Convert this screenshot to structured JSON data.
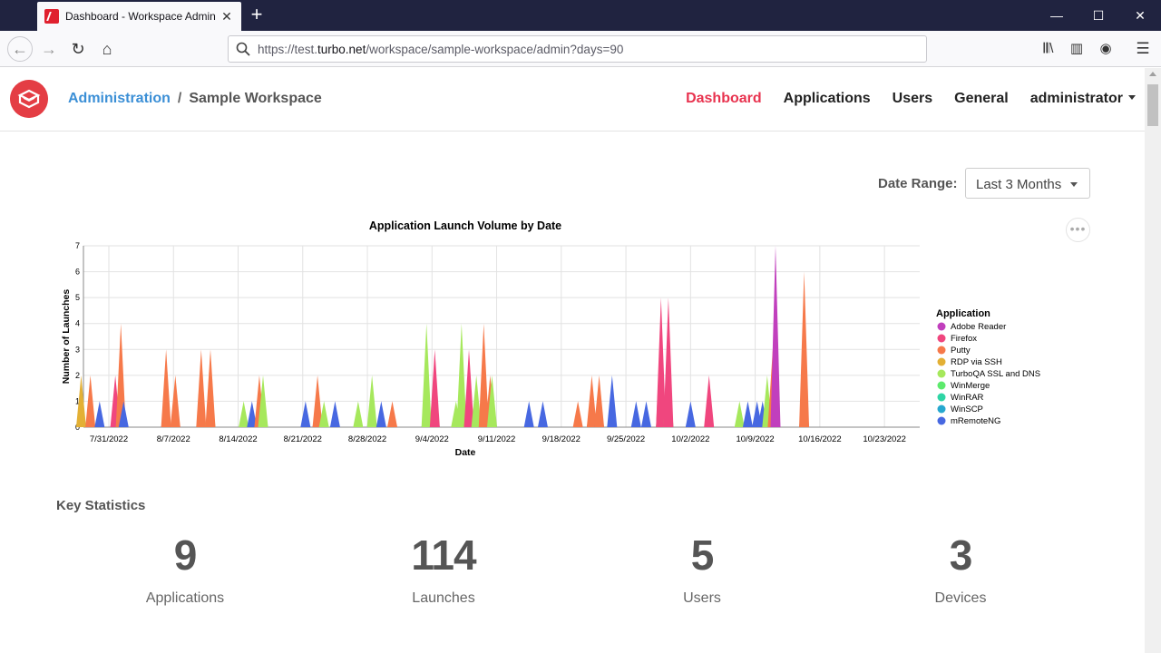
{
  "browser": {
    "tab_title": "Dashboard - Workspace Admin",
    "url_prefix": "https://test.",
    "url_host": "turbo.net",
    "url_path": "/workspace/sample-workspace/admin?days=90"
  },
  "header": {
    "breadcrumb_root": "Administration",
    "breadcrumb_sep": "/",
    "breadcrumb_current": "Sample Workspace",
    "nav": [
      "Dashboard",
      "Applications",
      "Users",
      "General",
      "administrator"
    ]
  },
  "filters": {
    "date_range_label": "Date Range:",
    "date_range_value": "Last 3 Months"
  },
  "chart_data": {
    "type": "area",
    "title": "Application Launch Volume by Date",
    "xlabel": "Date",
    "ylabel": "Number of Launches",
    "ylim": [
      0,
      7
    ],
    "yticks": [
      "0",
      "1",
      "2",
      "3",
      "4",
      "5",
      "6",
      "7"
    ],
    "xticks": [
      "7/31/2022",
      "8/7/2022",
      "8/14/2022",
      "8/21/2022",
      "8/28/2022",
      "9/4/2022",
      "9/11/2022",
      "9/18/2022",
      "9/25/2022",
      "10/2/2022",
      "10/9/2022",
      "10/16/2022",
      "10/23/2022"
    ],
    "grid": true,
    "legend_title": "Application",
    "legend_position": "right",
    "series": [
      {
        "name": "Adobe Reader",
        "color": "#c13fbd"
      },
      {
        "name": "Firefox",
        "color": "#f0467e"
      },
      {
        "name": "Putty",
        "color": "#f6794a"
      },
      {
        "name": "RDP via SSH",
        "color": "#e3b035"
      },
      {
        "name": "TurboQA SSL and DNS",
        "color": "#a6e85c"
      },
      {
        "name": "WinMerge",
        "color": "#5dea6d"
      },
      {
        "name": "WinRAR",
        "color": "#2fd5a5"
      },
      {
        "name": "WinSCP",
        "color": "#26a8cf"
      },
      {
        "name": "mRemoteNG",
        "color": "#4768e1"
      }
    ],
    "spikes": [
      {
        "day": -3,
        "stack": [
          1,
          0,
          0,
          1,
          0,
          0,
          0,
          0,
          0
        ]
      },
      {
        "day": -2,
        "stack": [
          0,
          0,
          1,
          1,
          0,
          0,
          0,
          0,
          0
        ]
      },
      {
        "day": -1,
        "stack": [
          1,
          0,
          0,
          0,
          0,
          0,
          0,
          0,
          0
        ]
      },
      {
        "day": 0.7,
        "stack": [
          1,
          1,
          0,
          0,
          0,
          0,
          0,
          0,
          0
        ]
      },
      {
        "day": 1.3,
        "stack": [
          2,
          0,
          1,
          1,
          0,
          0,
          0,
          0,
          0
        ]
      },
      {
        "day": 1.6,
        "stack": [
          1,
          0,
          0,
          0,
          0,
          0,
          0,
          0,
          0
        ]
      },
      {
        "day": 6.2,
        "stack": [
          1,
          0,
          2,
          0,
          0,
          0,
          0,
          0,
          0
        ]
      },
      {
        "day": 7.2,
        "stack": [
          1,
          0,
          1,
          0,
          0,
          0,
          0,
          0,
          0
        ]
      },
      {
        "day": 10,
        "stack": [
          1,
          0,
          2,
          0,
          0,
          0,
          0,
          0,
          0
        ]
      },
      {
        "day": 11,
        "stack": [
          1,
          0,
          1,
          0,
          1,
          0,
          0,
          0,
          0
        ]
      },
      {
        "day": 14.6,
        "stack": [
          0,
          0,
          0,
          0,
          1,
          0,
          0,
          0,
          0
        ]
      },
      {
        "day": 15.5,
        "stack": [
          1,
          0,
          0,
          0,
          0,
          0,
          0,
          0,
          0
        ]
      },
      {
        "day": 16.3,
        "stack": [
          1,
          0,
          1,
          0,
          0,
          0,
          0,
          0,
          0
        ]
      },
      {
        "day": 16.7,
        "stack": [
          1,
          0,
          0,
          0,
          1,
          0,
          0,
          0,
          0
        ]
      },
      {
        "day": 21.3,
        "stack": [
          1,
          0,
          0,
          0,
          0,
          0,
          0,
          0,
          0
        ]
      },
      {
        "day": 22.6,
        "stack": [
          1,
          0,
          1,
          0,
          0,
          0,
          0,
          0,
          0
        ]
      },
      {
        "day": 23.3,
        "stack": [
          0,
          0,
          0,
          0,
          1,
          0,
          0,
          0,
          0
        ]
      },
      {
        "day": 24.5,
        "stack": [
          1,
          0,
          0,
          0,
          0,
          0,
          0,
          0,
          0
        ]
      },
      {
        "day": 27,
        "stack": [
          0,
          0,
          0,
          0,
          1,
          0,
          0,
          0,
          0
        ]
      },
      {
        "day": 28.5,
        "stack": [
          1,
          0,
          0,
          0,
          1,
          0,
          0,
          0,
          0
        ]
      },
      {
        "day": 29.5,
        "stack": [
          1,
          0,
          0,
          0,
          0,
          0,
          0,
          0,
          0
        ]
      },
      {
        "day": 30.7,
        "stack": [
          0,
          0,
          1,
          0,
          0,
          0,
          0,
          0,
          0
        ]
      },
      {
        "day": 34.4,
        "stack": [
          1,
          0,
          0,
          0,
          3,
          0,
          0,
          0,
          0
        ]
      },
      {
        "day": 35.3,
        "stack": [
          1,
          2,
          0,
          0,
          0,
          0,
          0,
          0,
          0
        ]
      },
      {
        "day": 37.6,
        "stack": [
          0,
          0,
          0,
          0,
          1,
          0,
          0,
          0,
          0
        ]
      },
      {
        "day": 38.2,
        "stack": [
          1,
          0,
          0,
          0,
          3,
          0,
          0,
          0,
          0
        ]
      },
      {
        "day": 39,
        "stack": [
          1,
          1,
          1,
          0,
          0,
          0,
          0,
          0,
          0
        ]
      },
      {
        "day": 39.8,
        "stack": [
          1,
          0,
          0,
          0,
          1,
          0,
          0,
          0,
          0
        ]
      },
      {
        "day": 40.6,
        "stack": [
          1,
          0,
          1,
          0,
          2,
          0,
          0,
          0,
          0
        ]
      },
      {
        "day": 41.3,
        "stack": [
          1,
          0,
          1,
          0,
          0,
          0,
          0,
          0,
          0
        ]
      },
      {
        "day": 41.5,
        "stack": [
          1,
          0,
          0,
          0,
          1,
          0,
          0,
          0,
          0
        ]
      },
      {
        "day": 45.5,
        "stack": [
          1,
          0,
          0,
          0,
          0,
          0,
          0,
          0,
          0
        ]
      },
      {
        "day": 47,
        "stack": [
          1,
          0,
          0,
          0,
          0,
          0,
          0,
          0,
          0
        ]
      },
      {
        "day": 50.8,
        "stack": [
          0,
          0,
          1,
          0,
          0,
          0,
          0,
          0,
          0
        ]
      },
      {
        "day": 52.3,
        "stack": [
          1,
          0,
          1,
          0,
          0,
          0,
          0,
          0,
          0
        ]
      },
      {
        "day": 53.1,
        "stack": [
          1,
          0,
          1,
          0,
          0,
          0,
          0,
          0,
          0
        ]
      },
      {
        "day": 54.5,
        "stack": [
          2,
          0,
          0,
          0,
          0,
          0,
          0,
          0,
          0
        ]
      },
      {
        "day": 57.1,
        "stack": [
          1,
          0,
          0,
          0,
          0,
          0,
          0,
          0,
          0
        ]
      },
      {
        "day": 58.2,
        "stack": [
          1,
          0,
          0,
          0,
          0,
          0,
          0,
          0,
          0
        ]
      },
      {
        "day": 59.8,
        "stack": [
          1,
          1,
          1,
          0,
          0,
          0,
          1,
          1,
          0
        ]
      },
      {
        "day": 60.6,
        "stack": [
          1,
          2,
          0,
          0,
          1,
          0,
          1,
          0,
          0
        ]
      },
      {
        "day": 63,
        "stack": [
          1,
          0,
          0,
          0,
          0,
          0,
          0,
          0,
          0
        ]
      },
      {
        "day": 65,
        "stack": [
          0,
          2,
          0,
          0,
          0,
          0,
          0,
          0,
          0
        ]
      },
      {
        "day": 68.3,
        "stack": [
          0,
          0,
          0,
          0,
          1,
          0,
          0,
          0,
          0
        ]
      },
      {
        "day": 69.2,
        "stack": [
          1,
          0,
          0,
          0,
          0,
          0,
          0,
          0,
          0
        ]
      },
      {
        "day": 70.2,
        "stack": [
          1,
          0,
          0,
          0,
          0,
          0,
          0,
          0,
          0
        ]
      },
      {
        "day": 70.8,
        "stack": [
          1,
          0,
          0,
          0,
          0,
          0,
          0,
          0,
          0
        ]
      },
      {
        "day": 71.3,
        "stack": [
          1,
          0,
          0,
          0,
          1,
          0,
          0,
          0,
          0
        ]
      },
      {
        "day": 71.9,
        "stack": [
          1,
          0,
          1,
          1,
          0,
          0,
          0,
          0,
          0
        ]
      },
      {
        "day": 72.2,
        "stack": [
          0,
          0,
          0,
          0,
          0,
          0,
          0,
          0,
          7
        ]
      },
      {
        "day": 75.3,
        "stack": [
          1,
          0,
          4,
          0,
          0,
          0,
          0,
          1,
          0
        ]
      }
    ]
  },
  "stats": {
    "title": "Key Statistics",
    "items": [
      {
        "value": "9",
        "label": "Applications"
      },
      {
        "value": "114",
        "label": "Launches"
      },
      {
        "value": "5",
        "label": "Users"
      },
      {
        "value": "3",
        "label": "Devices"
      }
    ]
  }
}
